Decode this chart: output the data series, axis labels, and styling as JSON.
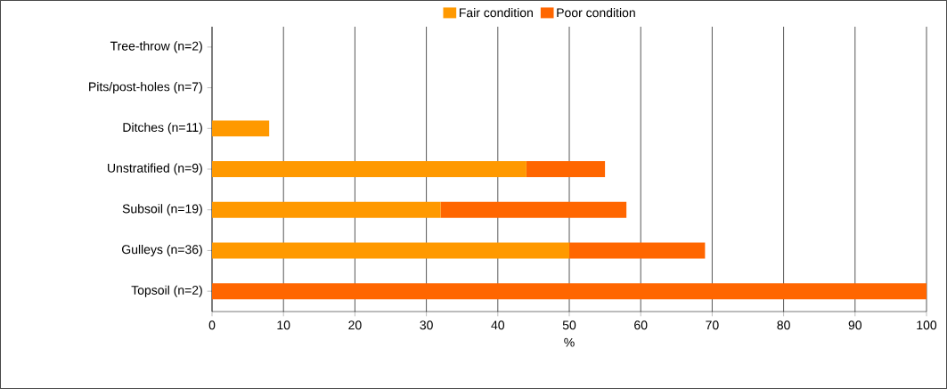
{
  "chart_data": {
    "type": "bar",
    "orientation": "horizontal",
    "stacked": true,
    "categories": [
      "Tree-throw (n=2)",
      "Pits/post-holes (n=7)",
      "Ditches (n=11)",
      "Unstratified (n=9)",
      "Subsoil (n=19)",
      "Gulleys (n=36)",
      "Topsoil (n=2)"
    ],
    "series": [
      {
        "name": "Fair condition",
        "color": "#ff9900",
        "values": [
          0,
          0,
          8,
          44,
          32,
          50,
          0
        ]
      },
      {
        "name": "Poor condition",
        "color": "#ff6600",
        "values": [
          0,
          0,
          0,
          11,
          26,
          19,
          100
        ]
      }
    ],
    "xlim": [
      0,
      100
    ],
    "xticks": [
      0,
      10,
      20,
      30,
      40,
      50,
      60,
      70,
      80,
      90,
      100
    ],
    "xlabel": "%",
    "grid": "x",
    "legend": "top"
  }
}
